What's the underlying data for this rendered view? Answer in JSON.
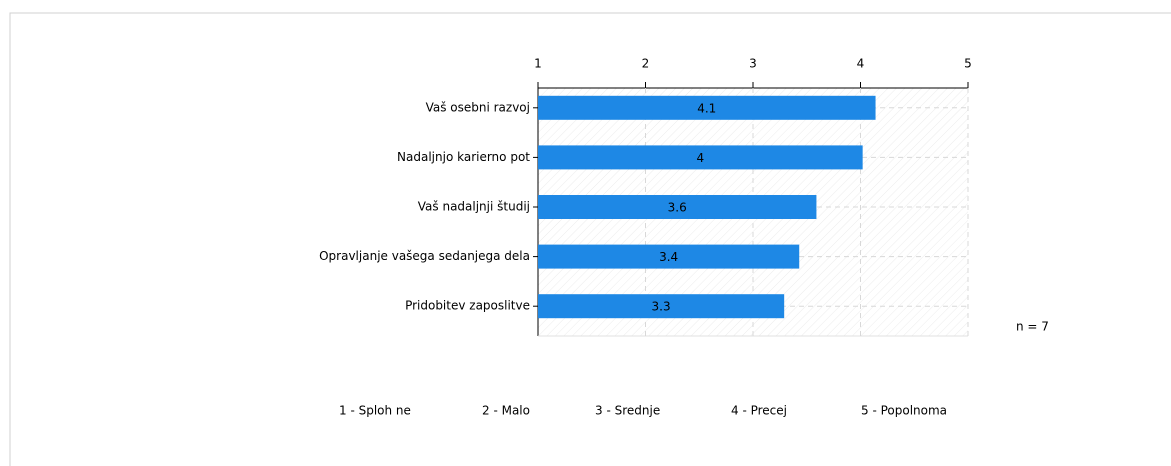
{
  "chart_data": {
    "type": "bar",
    "orientation": "horizontal",
    "categories": [
      "Vaš osebni razvoj",
      "Nadaljnjo karierno pot",
      "Vaš nadaljnji študij",
      "Opravljanje vašega sedanjega dela ",
      "Pridobitev zaposlitve"
    ],
    "values": [
      4.14,
      4.02,
      3.59,
      3.43,
      3.29
    ],
    "value_labels": [
      "4.1",
      "4",
      "3.6",
      "3.4",
      "3.3"
    ],
    "color": "#1e88e5",
    "xlim": [
      1,
      5
    ],
    "xticks": [
      1,
      2,
      3,
      4,
      5
    ],
    "grid": true,
    "annotation": "n = 7",
    "scale_labels": [
      "1 - Sploh ne",
      "2 - Malo",
      "3 - Srednje",
      "4 - Precej",
      "5 - Popolnoma"
    ]
  }
}
